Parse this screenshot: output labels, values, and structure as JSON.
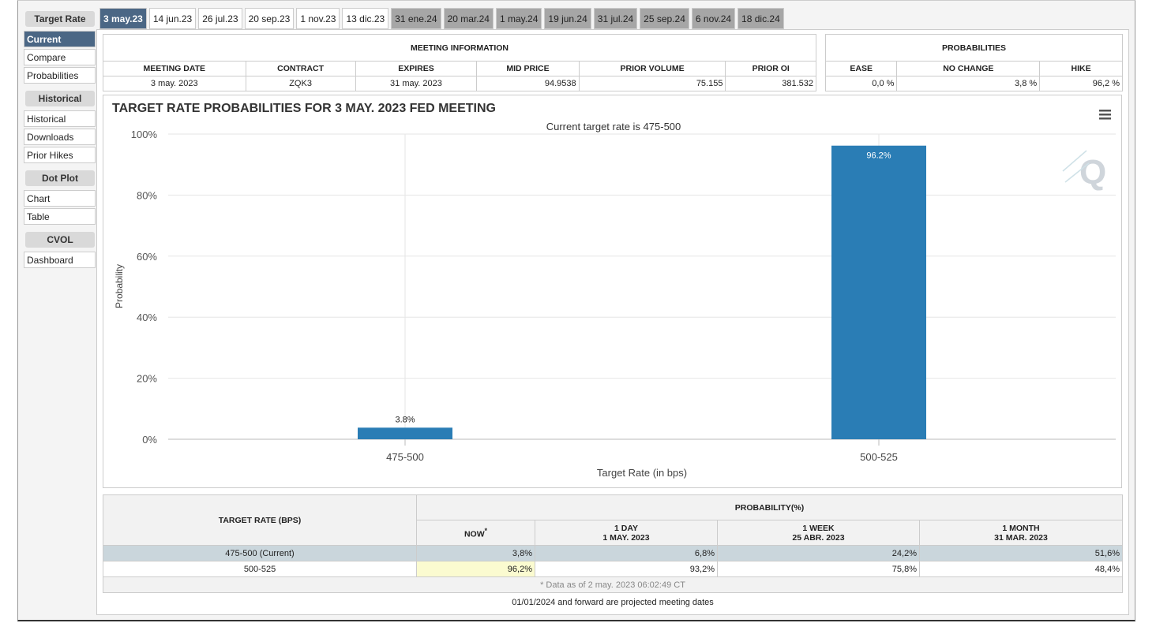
{
  "sidebar": [
    {
      "header": "Target Rate",
      "items": [
        "Current",
        "Compare",
        "Probabilities"
      ]
    },
    {
      "header": "Historical",
      "items": [
        "Historical",
        "Downloads",
        "Prior Hikes"
      ]
    },
    {
      "header": "Dot Plot",
      "items": [
        "Chart",
        "Table"
      ]
    },
    {
      "header": "CVOL",
      "items": [
        "Dashboard"
      ]
    }
  ],
  "tabs": [
    "3 may.23",
    "14 jun.23",
    "26 jul.23",
    "20 sep.23",
    "1 nov.23",
    "13 dic.23",
    "31 ene.24",
    "20 mar.24",
    "1 may.24",
    "19 jun.24",
    "31 jul.24",
    "25 sep.24",
    "6 nov.24",
    "18 dic.24"
  ],
  "meeting_info": {
    "title": "MEETING INFORMATION",
    "headers": [
      "MEETING DATE",
      "CONTRACT",
      "EXPIRES",
      "MID PRICE",
      "PRIOR VOLUME",
      "PRIOR OI"
    ],
    "row": [
      "3 may. 2023",
      "ZQK3",
      "31 may. 2023",
      "94.9538",
      "75.155",
      "381.532"
    ]
  },
  "probabilities": {
    "title": "PROBABILITIES",
    "headers": [
      "EASE",
      "NO CHANGE",
      "HIKE"
    ],
    "row": [
      "0,0 %",
      "3,8 %",
      "96,2 %"
    ]
  },
  "chart_data": {
    "type": "bar",
    "title": "TARGET RATE PROBABILITIES FOR 3 MAY. 2023 FED MEETING",
    "subtitle": "Current target rate is 475-500",
    "x_label": "Target Rate (in bps)",
    "y_label": "Probability",
    "categories": [
      "475-500",
      "500-525"
    ],
    "values": [
      3.8,
      96.2
    ],
    "value_labels": [
      "3.8%",
      "96.2%"
    ],
    "color": "#2a7db5",
    "ylim": [
      0,
      100
    ],
    "yticks": [
      {
        "value": 0,
        "label": "0%"
      },
      {
        "value": 20,
        "label": "20%"
      },
      {
        "value": 40,
        "label": "40%"
      },
      {
        "value": 60,
        "label": "60%"
      },
      {
        "value": 80,
        "label": "80%"
      },
      {
        "value": 100,
        "label": "100%"
      }
    ],
    "grid": true
  },
  "probability_table": {
    "row_header": "TARGET RATE (BPS)",
    "group_header": "PROBABILITY(%)",
    "columns": [
      {
        "label": "NOW",
        "mark": "*"
      },
      {
        "label": "1 DAY",
        "date": "1 MAY. 2023"
      },
      {
        "label": "1 WEEK",
        "date": "25 ABR. 2023"
      },
      {
        "label": "1 MONTH",
        "date": "31 MAR. 2023"
      }
    ],
    "rows": [
      [
        "475-500 (Current)",
        "3,8%",
        "6,8%",
        "24,2%",
        "51,6%"
      ],
      [
        "500-525",
        "96,2%",
        "93,2%",
        "75,8%",
        "48,4%"
      ]
    ],
    "note": "* Data as of 2 may. 2023 06:02:49 CT"
  },
  "footer": "01/01/2024 and forward are projected meeting dates"
}
